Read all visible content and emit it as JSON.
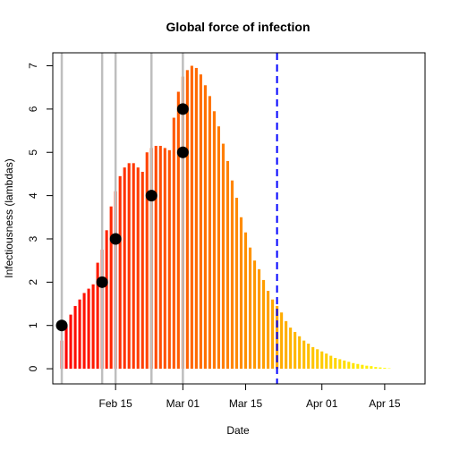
{
  "chart_data": {
    "type": "bar",
    "title": "Global force of infection",
    "xlabel": "Date",
    "ylabel": "Infectiousness (lambdas)",
    "x_start": "2020-02-03",
    "x_axis_range": [
      "2020-02-01",
      "2020-04-24"
    ],
    "ylim": [
      -0.35,
      7.3
    ],
    "x_ticks": [
      {
        "date": "2020-02-15",
        "label": "Feb 15"
      },
      {
        "date": "2020-03-01",
        "label": "Mar 01"
      },
      {
        "date": "2020-03-15",
        "label": "Mar 15"
      },
      {
        "date": "2020-04-01",
        "label": "Apr 01"
      },
      {
        "date": "2020-04-15",
        "label": "Apr 15"
      }
    ],
    "y_ticks": [
      0,
      1,
      2,
      3,
      4,
      5,
      6,
      7
    ],
    "bar_color_scale": [
      "#ff0000",
      "#ff8000",
      "#ffff00"
    ],
    "values": [
      0.65,
      1.0,
      1.25,
      1.45,
      1.6,
      1.75,
      1.85,
      1.95,
      2.45,
      2.75,
      3.2,
      3.75,
      4.1,
      4.45,
      4.65,
      4.75,
      4.75,
      4.65,
      4.55,
      5.0,
      5.1,
      5.15,
      5.15,
      5.1,
      5.05,
      5.8,
      6.4,
      6.75,
      6.9,
      7.0,
      6.95,
      6.8,
      6.55,
      6.3,
      5.95,
      5.6,
      5.2,
      4.8,
      4.35,
      3.95,
      3.5,
      3.15,
      2.8,
      2.5,
      2.3,
      2.05,
      1.8,
      1.6,
      1.45,
      1.3,
      1.1,
      0.95,
      0.85,
      0.75,
      0.65,
      0.58,
      0.5,
      0.45,
      0.4,
      0.35,
      0.3,
      0.25,
      0.22,
      0.19,
      0.16,
      0.13,
      0.11,
      0.09,
      0.07,
      0.06,
      0.04,
      0.03,
      0.02,
      0.01
    ],
    "cases": [
      {
        "date": "2020-02-03",
        "value": 1
      },
      {
        "date": "2020-02-12",
        "value": 2
      },
      {
        "date": "2020-02-15",
        "value": 3
      },
      {
        "date": "2020-02-23",
        "value": 4
      },
      {
        "date": "2020-03-01",
        "value": 5
      },
      {
        "date": "2020-03-01",
        "value": 6
      }
    ],
    "case_vlines": [
      "2020-02-03",
      "2020-02-12",
      "2020-02-15",
      "2020-02-23",
      "2020-03-01"
    ],
    "vline_color": "#bebebe",
    "cutoff_date": "2020-03-22",
    "cutoff_color": "#0000ff"
  }
}
